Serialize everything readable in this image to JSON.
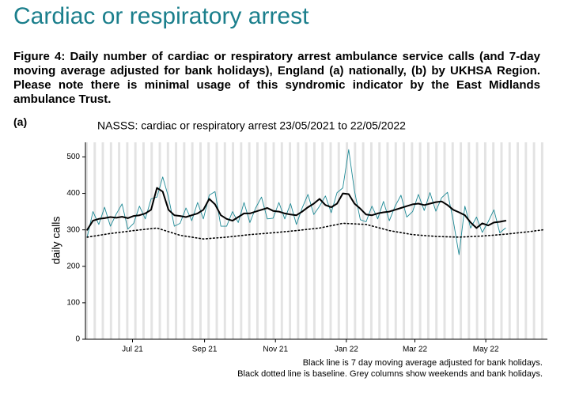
{
  "header": {
    "title": "Cardiac or respiratory arrest",
    "caption": "Figure 4: Daily number of cardiac or respiratory arrest ambulance service calls (and 7-day moving average adjusted for bank holidays), England (a) nationally, (b) by UKHSA Region. Please note there is minimal usage of this syndromic indicator by the East Midlands ambulance Trust."
  },
  "panel_label": "(a)",
  "chart_data": {
    "type": "line",
    "title": "NASSS: cardiac or respiratory arrest 23/05/2021 to 22/05/2022",
    "y_label": "daily calls",
    "notes": [
      "Black line is 7 day moving average adjusted for bank holidays.",
      "Black dotted line is baseline. Grey columns show weekends and bank holidays."
    ],
    "x": [
      0,
      5,
      10,
      15,
      20,
      25,
      30,
      35,
      40,
      45,
      50,
      55,
      60,
      65,
      70,
      75,
      80,
      85,
      90,
      95,
      100,
      105,
      110,
      115,
      120,
      125,
      130,
      135,
      140,
      145,
      150,
      155,
      160,
      165,
      170,
      175,
      180,
      185,
      190,
      195,
      200,
      205,
      210,
      215,
      220,
      225,
      230,
      235,
      240,
      245,
      250,
      255,
      260,
      265,
      270,
      275,
      280,
      285,
      290,
      295,
      300,
      305,
      310,
      315,
      320,
      325,
      330,
      335,
      340,
      345,
      350,
      355,
      360
    ],
    "xlim": [
      -1.5,
      396
    ],
    "xticks": [
      {
        "value": 39,
        "label": "Jul 21"
      },
      {
        "value": 101,
        "label": "Sep 21"
      },
      {
        "value": 162,
        "label": "Nov 21"
      },
      {
        "value": 223,
        "label": "Jan 22"
      },
      {
        "value": 282,
        "label": "Mar 22"
      },
      {
        "value": 343,
        "label": "May 22"
      }
    ],
    "ylim": [
      0,
      540
    ],
    "yticks": [
      0,
      100,
      200,
      300,
      400,
      500
    ],
    "grid": false,
    "shading_color": "#e3e3e3",
    "series": [
      {
        "name": "daily calls",
        "color": "#1f8a96",
        "width": 0.9,
        "dash": "none",
        "values": [
          280,
          350,
          315,
          362,
          310,
          343,
          371,
          302,
          318,
          365,
          330,
          385,
          390,
          445,
          390,
          310,
          318,
          360,
          325,
          375,
          330,
          395,
          405,
          310,
          310,
          350,
          320,
          375,
          320,
          360,
          390,
          330,
          332,
          375,
          330,
          372,
          315,
          360,
          397,
          342,
          365,
          393,
          347,
          402,
          415,
          520,
          407,
          328,
          322,
          365,
          330,
          378,
          325,
          365,
          395,
          335,
          350,
          397,
          353,
          402,
          351,
          388,
          403,
          325,
          232,
          365,
          305,
          335,
          293,
          322,
          355,
          292,
          305
        ]
      },
      {
        "name": "7 day moving average",
        "color": "#000000",
        "width": 2,
        "dash": "none",
        "values": [
          300,
          325,
          330,
          332,
          335,
          333,
          336,
          332,
          338,
          340,
          345,
          355,
          415,
          405,
          355,
          340,
          338,
          335,
          340,
          345,
          355,
          385,
          370,
          340,
          330,
          325,
          335,
          345,
          345,
          350,
          355,
          360,
          352,
          350,
          345,
          342,
          340,
          350,
          362,
          372,
          385,
          368,
          362,
          372,
          400,
          398,
          372,
          358,
          342,
          340,
          345,
          348,
          350,
          355,
          360,
          365,
          370,
          372,
          368,
          372,
          376,
          378,
          368,
          355,
          348,
          340,
          320,
          305,
          318,
          312,
          320,
          322,
          325
        ]
      },
      {
        "name": "baseline",
        "color": "#000000",
        "width": 1.6,
        "dash": "1.5 3",
        "x": [
          0,
          20,
          40,
          60,
          80,
          100,
          120,
          140,
          160,
          180,
          200,
          220,
          240,
          260,
          280,
          300,
          320,
          340,
          360,
          380,
          392
        ],
        "values": [
          280,
          290,
          298,
          305,
          285,
          275,
          280,
          287,
          292,
          298,
          305,
          318,
          315,
          298,
          287,
          282,
          280,
          283,
          288,
          295,
          300
        ]
      }
    ]
  }
}
